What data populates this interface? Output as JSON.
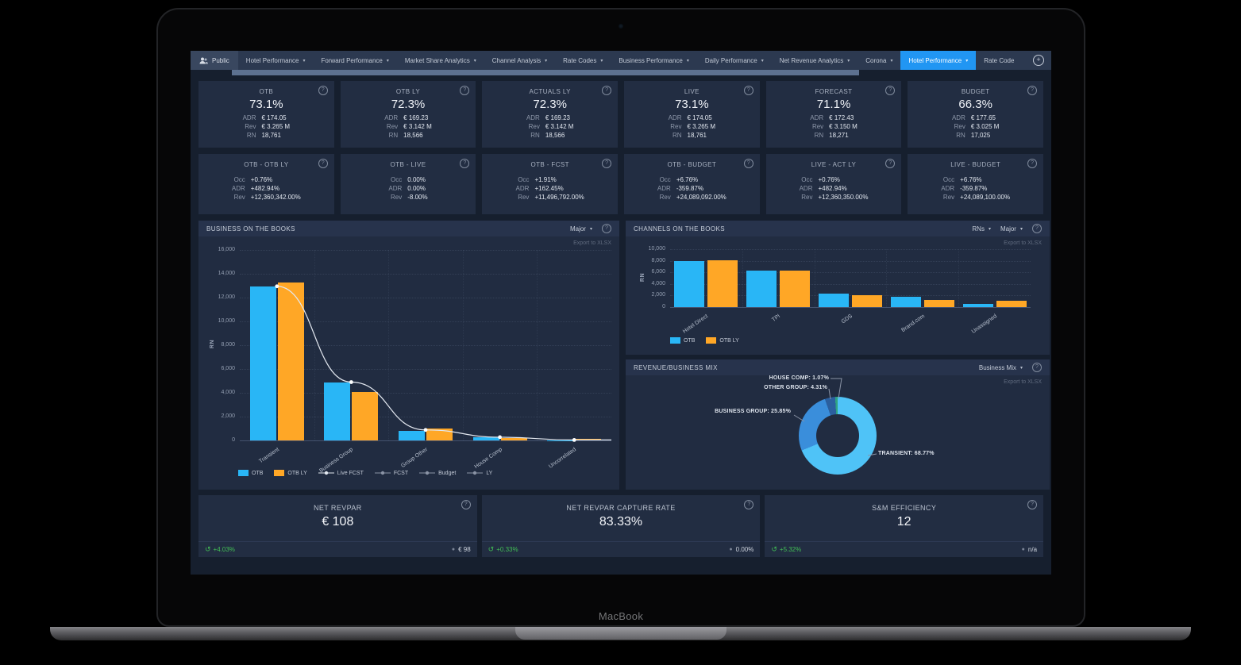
{
  "icons": {
    "help": "?",
    "plus": "+",
    "caret": "▾",
    "history": "↺",
    "dot": "●"
  },
  "device": {
    "brand": "MacBook"
  },
  "nav": {
    "public_label": "Public",
    "items": [
      {
        "label": "Hotel Performance",
        "caret": true,
        "active": false
      },
      {
        "label": "Forward Performance",
        "caret": true,
        "active": false
      },
      {
        "label": "Market Share Analytics",
        "caret": true,
        "active": false
      },
      {
        "label": "Channel Analysis",
        "caret": true,
        "active": false
      },
      {
        "label": "Rate Codes",
        "caret": true,
        "active": false
      },
      {
        "label": "Business Performance",
        "caret": true,
        "active": false
      },
      {
        "label": "Daily Performance",
        "caret": true,
        "active": false
      },
      {
        "label": "Net Revenue Analytics",
        "caret": true,
        "active": false
      },
      {
        "label": "Corona",
        "caret": true,
        "active": false
      },
      {
        "label": "Hotel Performance",
        "caret": true,
        "active": true
      },
      {
        "label": "Rate Code",
        "caret": false,
        "active": false
      }
    ]
  },
  "kpi_row1": [
    {
      "title": "OTB",
      "occ": "73.1%",
      "rows": [
        {
          "label": "ADR",
          "value": "€ 174.05"
        },
        {
          "label": "Rev",
          "value": "€ 3.265 M"
        },
        {
          "label": "RN",
          "value": "18,761"
        }
      ]
    },
    {
      "title": "OTB LY",
      "occ": "72.3%",
      "rows": [
        {
          "label": "ADR",
          "value": "€ 169.23"
        },
        {
          "label": "Rev",
          "value": "€ 3.142 M"
        },
        {
          "label": "RN",
          "value": "18,566"
        }
      ]
    },
    {
      "title": "ACTUALS LY",
      "occ": "72.3%",
      "rows": [
        {
          "label": "ADR",
          "value": "€ 169.23"
        },
        {
          "label": "Rev",
          "value": "€ 3.142 M"
        },
        {
          "label": "RN",
          "value": "18,566"
        }
      ]
    },
    {
      "title": "LIVE",
      "occ": "73.1%",
      "rows": [
        {
          "label": "ADR",
          "value": "€ 174.05"
        },
        {
          "label": "Rev",
          "value": "€ 3.265 M"
        },
        {
          "label": "RN",
          "value": "18,761"
        }
      ]
    },
    {
      "title": "FORECAST",
      "occ": "71.1%",
      "rows": [
        {
          "label": "ADR",
          "value": "€ 172.43"
        },
        {
          "label": "Rev",
          "value": "€ 3.150 M"
        },
        {
          "label": "RN",
          "value": "18,271"
        }
      ]
    },
    {
      "title": "BUDGET",
      "occ": "66.3%",
      "rows": [
        {
          "label": "ADR",
          "value": "€ 177.65"
        },
        {
          "label": "Rev",
          "value": "€ 3.025 M"
        },
        {
          "label": "RN",
          "value": "17,025"
        }
      ]
    }
  ],
  "kpi_row2": [
    {
      "title": "OTB - OTB LY",
      "rows": [
        {
          "label": "Occ",
          "value": "+0.76%",
          "tone": "green"
        },
        {
          "label": "ADR",
          "value": "+482.94%",
          "tone": "green"
        },
        {
          "label": "Rev",
          "value": "+12,360,342.00%",
          "tone": "green"
        }
      ]
    },
    {
      "title": "OTB - LIVE",
      "rows": [
        {
          "label": "Occ",
          "value": "0.00%",
          "tone": "red"
        },
        {
          "label": "ADR",
          "value": "0.00%",
          "tone": "red"
        },
        {
          "label": "Rev",
          "value": "-8.00%",
          "tone": "red"
        }
      ]
    },
    {
      "title": "OTB - FCST",
      "rows": [
        {
          "label": "Occ",
          "value": "+1.91%",
          "tone": "green"
        },
        {
          "label": "ADR",
          "value": "+162.45%",
          "tone": "green"
        },
        {
          "label": "Rev",
          "value": "+11,496,792.00%",
          "tone": "green"
        }
      ]
    },
    {
      "title": "OTB - BUDGET",
      "rows": [
        {
          "label": "Occ",
          "value": "+6.76%",
          "tone": "green"
        },
        {
          "label": "ADR",
          "value": "-359.87%",
          "tone": "red"
        },
        {
          "label": "Rev",
          "value": "+24,089,092.00%",
          "tone": "green"
        }
      ]
    },
    {
      "title": "LIVE - ACT LY",
      "rows": [
        {
          "label": "Occ",
          "value": "+0.76%",
          "tone": "green"
        },
        {
          "label": "ADR",
          "value": "+482.94%",
          "tone": "green"
        },
        {
          "label": "Rev",
          "value": "+12,360,350.00%",
          "tone": "green"
        }
      ]
    },
    {
      "title": "LIVE - BUDGET",
      "rows": [
        {
          "label": "Occ",
          "value": "+6.76%",
          "tone": "green"
        },
        {
          "label": "ADR",
          "value": "-359.87%",
          "tone": "red"
        },
        {
          "label": "Rev",
          "value": "+24,089,100.00%",
          "tone": "green"
        }
      ]
    }
  ],
  "panels": {
    "botb": {
      "title": "BUSINESS ON THE BOOKS",
      "dropdown": "Major",
      "export_label": "Export to XLSX"
    },
    "cotb": {
      "title": "CHANNELS ON THE BOOKS",
      "dropdown_measure": "RNs",
      "dropdown_level": "Major",
      "export_label": "Export to XLSX"
    },
    "mix": {
      "title": "REVENUE/BUSINESS MIX",
      "dropdown": "Business Mix",
      "export_label": "Export to XLSX"
    }
  },
  "chart_data": [
    {
      "id": "business_on_the_books",
      "type": "bar",
      "title": "BUSINESS ON THE BOOKS",
      "categories": [
        "Transient",
        "Business Group",
        "Group Other",
        "House Comp",
        "Uncorrelated"
      ],
      "series": [
        {
          "name": "OTB",
          "type": "bar",
          "color": "#29b6f6",
          "values": [
            12950,
            4850,
            800,
            260,
            30
          ]
        },
        {
          "name": "OTB LY",
          "type": "bar",
          "color": "#ffa726",
          "values": [
            13300,
            4100,
            1000,
            230,
            110
          ]
        },
        {
          "name": "Live FCST",
          "type": "line",
          "color": "#e3e8f0",
          "values": [
            12950,
            4900,
            880,
            270,
            40
          ]
        },
        {
          "name": "FCST",
          "type": "line",
          "color": "#8a93a5",
          "legend_only": true
        },
        {
          "name": "Budget",
          "type": "line",
          "color": "#8a93a5",
          "legend_only": true
        },
        {
          "name": "LY",
          "type": "line",
          "color": "#8a93a5",
          "legend_only": true
        }
      ],
      "xlabel": "",
      "ylabel": "RN",
      "ylim": [
        0,
        16000
      ],
      "ytick": 2000,
      "grid": true,
      "legend_position": "bottom"
    },
    {
      "id": "channels_on_the_books",
      "type": "bar",
      "title": "CHANNELS ON THE BOOKS",
      "categories": [
        "Hotel Direct",
        "TPI",
        "GDS",
        "Brand.com",
        "Unassigned"
      ],
      "series": [
        {
          "name": "OTB",
          "type": "bar",
          "color": "#29b6f6",
          "values": [
            7900,
            6300,
            2350,
            1800,
            500
          ]
        },
        {
          "name": "OTB LY",
          "type": "bar",
          "color": "#ffa726",
          "values": [
            8100,
            6300,
            2100,
            1200,
            1100
          ]
        }
      ],
      "xlabel": "",
      "ylabel": "RN",
      "ylim": [
        0,
        10000
      ],
      "ytick": 2000,
      "grid": true,
      "legend_position": "bottom"
    },
    {
      "id": "revenue_business_mix",
      "type": "pie",
      "title": "REVENUE/BUSINESS MIX",
      "slices": [
        {
          "label": "TRANSIENT",
          "value": 68.77,
          "color": "#4fc3f7"
        },
        {
          "label": "BUSINESS GROUP",
          "value": 25.85,
          "color": "#3a8edb"
        },
        {
          "label": "OTHER GROUP",
          "value": 4.31,
          "color": "#2b5f9e"
        },
        {
          "label": "HOUSE COMP",
          "value": 1.07,
          "color": "#2fa383"
        }
      ]
    }
  ],
  "bottom_cards": [
    {
      "title": "NET REVPAR",
      "value": "€ 108",
      "delta": "+4.03%",
      "benchmark": "€ 98"
    },
    {
      "title": "NET REVPAR CAPTURE RATE",
      "value": "83.33%",
      "delta": "+0.33%",
      "benchmark": "0.00%"
    },
    {
      "title": "S&M EFFICIENCY",
      "value": "12",
      "delta": "+5.32%",
      "benchmark": "n/a"
    }
  ]
}
